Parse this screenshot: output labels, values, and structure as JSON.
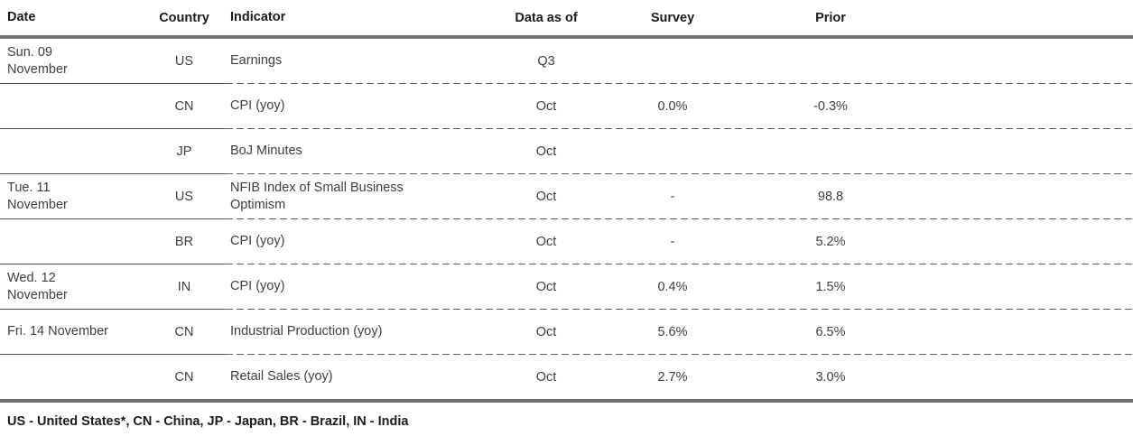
{
  "table": {
    "headers": {
      "date": "Date",
      "country": "Country",
      "indicator": "Indicator",
      "data_as_of": "Data as of",
      "survey": "Survey",
      "prior": "Prior"
    },
    "rows": [
      {
        "date": "Sun. 09\nNovember",
        "country": "US",
        "indicator": "Earnings",
        "data_as_of": "Q3",
        "survey": "",
        "prior": ""
      },
      {
        "date": "",
        "country": "CN",
        "indicator": "CPI (yoy)",
        "data_as_of": "Oct",
        "survey": "0.0%",
        "prior": "-0.3%"
      },
      {
        "date": "",
        "country": "JP",
        "indicator": "BoJ Minutes",
        "data_as_of": "Oct",
        "survey": "",
        "prior": ""
      },
      {
        "date": "Tue. 11\nNovember",
        "country": "US",
        "indicator": "NFIB Index of Small Business\nOptimism",
        "data_as_of": "Oct",
        "survey": "-",
        "prior": "98.8"
      },
      {
        "date": "",
        "country": "BR",
        "indicator": "CPI (yoy)",
        "data_as_of": "Oct",
        "survey": "-",
        "prior": "5.2%"
      },
      {
        "date": "Wed. 12\nNovember",
        "country": "IN",
        "indicator": "CPI (yoy)",
        "data_as_of": "Oct",
        "survey": "0.4%",
        "prior": "1.5%"
      },
      {
        "date": "Fri. 14 November",
        "country": "CN",
        "indicator": "Industrial Production (yoy)",
        "data_as_of": "Oct",
        "survey": "5.6%",
        "prior": "6.5%"
      },
      {
        "date": "",
        "country": "CN",
        "indicator": "Retail Sales (yoy)",
        "data_as_of": "Oct",
        "survey": "2.7%",
        "prior": "3.0%"
      }
    ],
    "footnote": "US - United States*, CN - China, JP - Japan, BR - Brazil, IN - India",
    "colors": {
      "rule_thick": "#707070",
      "separator_solid": "#4f4f4f",
      "separator_dash": "#636363",
      "body_text": "#3f3f3f",
      "header_text": "#1c1c1c"
    }
  }
}
